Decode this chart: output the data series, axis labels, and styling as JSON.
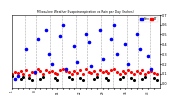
{
  "title": "Milwaukee Weather Evapotranspiration vs Rain per Day (Inches)",
  "legend_labels": [
    "Rain",
    "ET"
  ],
  "legend_colors": [
    "#0000ff",
    "#ff0000"
  ],
  "background_color": "#ffffff",
  "grid_color": "#aaaaaa",
  "xlim": [
    0,
    52
  ],
  "ylim": [
    -0.05,
    0.7
  ],
  "rain_x": [
    1,
    2,
    5,
    8,
    9,
    12,
    13,
    14,
    17,
    18,
    19,
    22,
    23,
    26,
    27,
    28,
    31,
    32,
    35,
    36,
    37,
    40,
    41,
    44,
    45,
    48,
    49
  ],
  "rain_y": [
    0.05,
    0.08,
    0.35,
    0.12,
    0.45,
    0.55,
    0.3,
    0.2,
    0.48,
    0.6,
    0.15,
    0.38,
    0.22,
    0.5,
    0.42,
    0.18,
    0.55,
    0.25,
    0.45,
    0.6,
    0.3,
    0.4,
    0.2,
    0.5,
    0.35,
    0.28,
    0.15
  ],
  "et_x": [
    0,
    1,
    2,
    3,
    4,
    5,
    6,
    7,
    8,
    9,
    10,
    11,
    12,
    13,
    14,
    15,
    16,
    17,
    18,
    19,
    20,
    21,
    22,
    23,
    24,
    25,
    26,
    27,
    28,
    29,
    30,
    31,
    32,
    33,
    34,
    35,
    36,
    37,
    38,
    39,
    40,
    41,
    42,
    43,
    44,
    45,
    46,
    47,
    48,
    49,
    50,
    51
  ],
  "et_y": [
    0.1,
    0.12,
    0.11,
    0.13,
    0.1,
    0.14,
    0.09,
    0.12,
    0.11,
    0.15,
    0.13,
    0.1,
    0.14,
    0.12,
    0.13,
    0.11,
    0.1,
    0.14,
    0.15,
    0.13,
    0.12,
    0.1,
    0.13,
    0.11,
    0.14,
    0.1,
    0.15,
    0.12,
    0.11,
    0.13,
    0.1,
    0.14,
    0.12,
    0.13,
    0.11,
    0.14,
    0.15,
    0.12,
    0.1,
    0.13,
    0.11,
    0.14,
    0.12,
    0.1,
    0.13,
    0.11,
    0.14,
    0.1,
    0.12,
    0.13,
    0.11,
    0.1
  ],
  "black_x": [
    0,
    3,
    4,
    6,
    7,
    10,
    11,
    15,
    16,
    20,
    21,
    24,
    25,
    29,
    30,
    33,
    34,
    38,
    39,
    42,
    43,
    46,
    47,
    50,
    51
  ],
  "black_y": [
    0.08,
    0.05,
    0.07,
    0.06,
    0.04,
    0.05,
    0.07,
    0.06,
    0.04,
    0.07,
    0.05,
    0.06,
    0.04,
    0.05,
    0.07,
    0.06,
    0.04,
    0.05,
    0.07,
    0.06,
    0.04,
    0.05,
    0.07,
    0.06,
    0.04
  ],
  "vline_x": [
    4.5,
    8.5,
    13.5,
    17.5,
    22.5,
    26.5,
    31.5,
    35.5,
    40.5,
    44.5,
    48.5
  ],
  "xtick_positions": [
    0,
    2,
    4,
    6,
    8,
    10,
    12,
    14,
    16,
    18,
    20,
    22,
    24,
    26,
    28,
    30,
    32,
    34,
    36,
    38,
    40,
    42,
    44,
    46,
    48,
    50
  ],
  "xtick_labels": [
    "1",
    "",
    "",
    "",
    "8",
    "",
    "",
    "",
    "15",
    "",
    "",
    "",
    "22",
    "",
    "",
    "",
    "29",
    "",
    "",
    "",
    "36",
    "",
    "",
    "",
    "43",
    ""
  ]
}
